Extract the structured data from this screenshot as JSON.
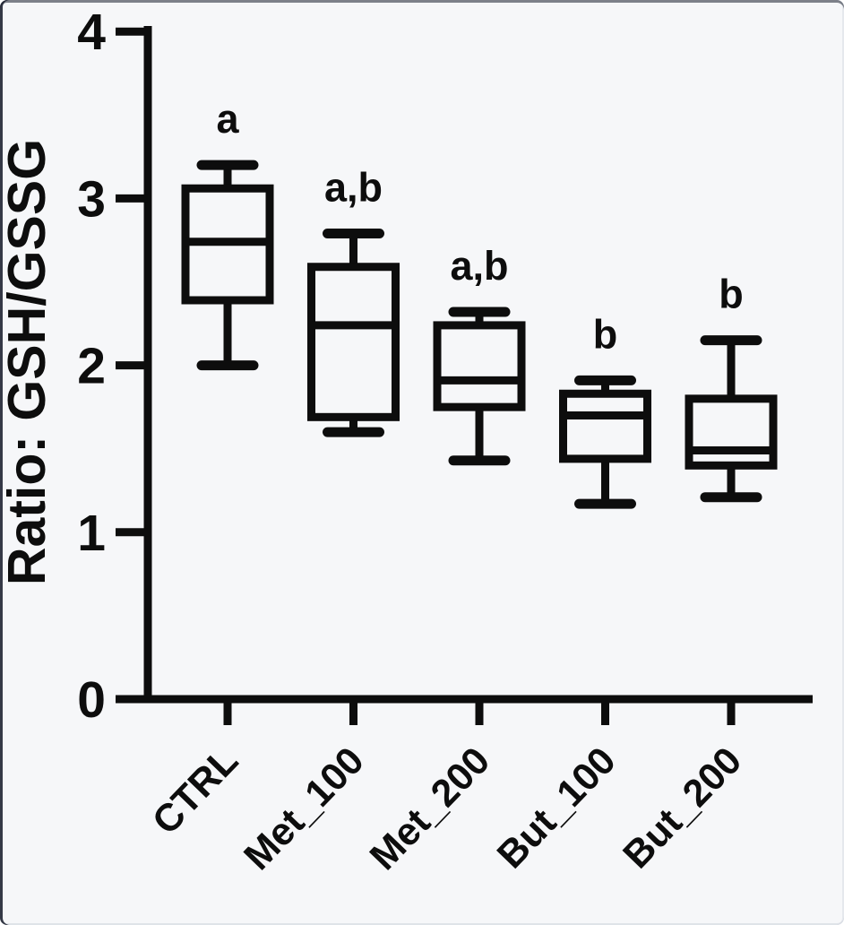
{
  "figure": {
    "background_color": "#f6f7f9",
    "stroke_color": "#0d0d0d",
    "frame_color": "#1a1f2e"
  },
  "chart_data": {
    "type": "box",
    "title": "",
    "xlabel": "",
    "ylabel": "Ratio: GSH/GSSG",
    "ylim": [
      0,
      4
    ],
    "yticks": [
      0,
      1,
      2,
      3,
      4
    ],
    "grid": false,
    "legend": false,
    "box_fill": "none",
    "x_tick_label_rotation_deg": -46,
    "categories": [
      "CTRL",
      "Met_100",
      "Met_200",
      "But_100",
      "But_200"
    ],
    "series": [
      {
        "category": "CTRL",
        "min": 2.0,
        "q1": 2.39,
        "median": 2.74,
        "q3": 3.06,
        "max": 3.2,
        "annotation": "a"
      },
      {
        "category": "Met_100",
        "min": 1.6,
        "q1": 1.69,
        "median": 2.24,
        "q3": 2.59,
        "max": 2.79,
        "annotation": "a,b"
      },
      {
        "category": "Met_200",
        "min": 1.43,
        "q1": 1.75,
        "median": 1.91,
        "q3": 2.24,
        "max": 2.32,
        "annotation": "a,b"
      },
      {
        "category": "But_100",
        "min": 1.17,
        "q1": 1.44,
        "median": 1.7,
        "q3": 1.83,
        "max": 1.91,
        "annotation": "b"
      },
      {
        "category": "But_200",
        "min": 1.21,
        "q1": 1.4,
        "median": 1.49,
        "q3": 1.8,
        "max": 2.15,
        "annotation": "b"
      }
    ]
  }
}
